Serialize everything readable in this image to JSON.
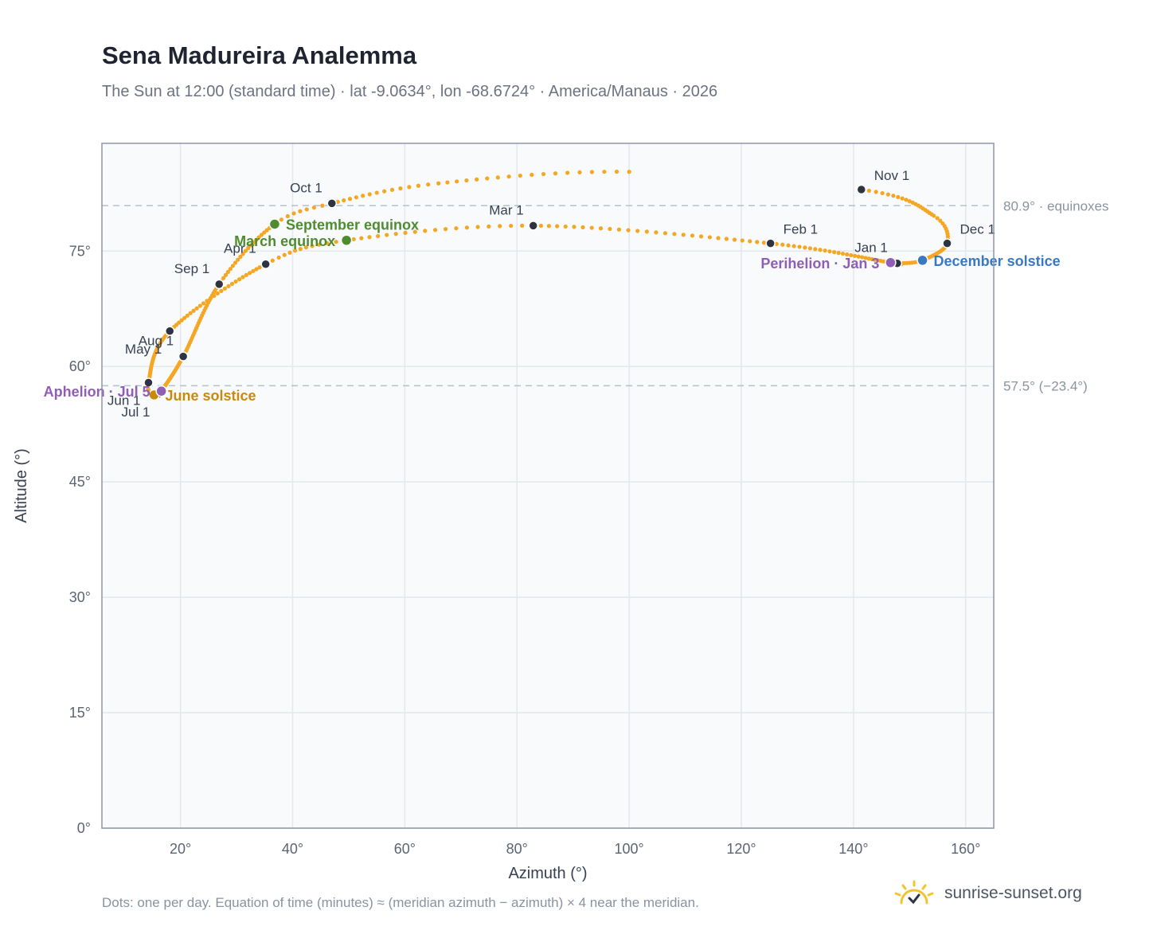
{
  "header": {
    "title": "Sena Madureira Analemma",
    "subtitle": "The Sun at 12:00 (standard time) · lat -9.0634°, lon -68.6724° · America/Manaus · 2026"
  },
  "footer": {
    "note": "Dots: one per day. Equation of time (minutes) ≈ (meridian azimuth − azimuth) × 4 near the meridian.",
    "brand": "sunrise-sunset.org"
  },
  "colors": {
    "curve": "#f5a623",
    "month_marker": "#2d3340",
    "equinox": "#4e8c2f",
    "june_solstice": "#c98a0c",
    "december_solstice": "#3a78c2",
    "apsis": "#8e5fb5",
    "grid": "#e3e8ee",
    "plot_bg": "#f8fafc",
    "frame": "#8c97a6",
    "ref_line": "#b8c0cc"
  },
  "chart_data": {
    "type": "scatter",
    "title": "Sena Madureira Analemma",
    "xlabel": "Azimuth (°)",
    "ylabel": "Altitude (°)",
    "xlim": [
      6,
      165
    ],
    "ylim": [
      0,
      89
    ],
    "xticks": [
      20,
      40,
      60,
      80,
      100,
      120,
      140,
      160
    ],
    "yticks": [
      0,
      15,
      30,
      45,
      60,
      75
    ],
    "tick_suffix": "°",
    "grid": true,
    "series": [
      {
        "name": "",
        "note": "one dot per day, path interpolated through monthly anchors",
        "anchors": [
          {
            "date": "Jan 1",
            "doy": 1,
            "az": 147.8,
            "alt": 73.4
          },
          {
            "date": "Jan 3",
            "doy": 3,
            "az": 146.6,
            "alt": 73.5
          },
          {
            "date": "Feb 1",
            "doy": 32,
            "az": 125.2,
            "alt": 76.0
          },
          {
            "date": "Mar 1",
            "doy": 60,
            "az": 82.9,
            "alt": 78.3
          },
          {
            "date": "Mar 20",
            "doy": 79,
            "az": 49.6,
            "alt": 76.4
          },
          {
            "date": "Apr 1",
            "doy": 91,
            "az": 35.2,
            "alt": 73.3
          },
          {
            "date": "May 1",
            "doy": 121,
            "az": 18.1,
            "alt": 64.6
          },
          {
            "date": "Jun 1",
            "doy": 152,
            "az": 14.3,
            "alt": 57.9
          },
          {
            "date": "Jun 21",
            "doy": 172,
            "az": 15.3,
            "alt": 56.3
          },
          {
            "date": "Jul 1",
            "doy": 182,
            "az": 16.0,
            "alt": 56.4
          },
          {
            "date": "Jul 5",
            "doy": 186,
            "az": 16.6,
            "alt": 56.8
          },
          {
            "date": "Aug 1",
            "doy": 213,
            "az": 20.5,
            "alt": 61.3
          },
          {
            "date": "Sep 1",
            "doy": 244,
            "az": 26.9,
            "alt": 70.7
          },
          {
            "date": "Sep 23",
            "doy": 266,
            "az": 36.8,
            "alt": 78.5
          },
          {
            "date": "Oct 1",
            "doy": 274,
            "az": 47.0,
            "alt": 81.2
          },
          {
            "date": "Oct 15",
            "doy": 288,
            "az": 66.0,
            "alt": 83.8
          },
          {
            "date": "Nov 1",
            "doy": 305,
            "az": 100.0,
            "alt": 85.3
          },
          {
            "date": "Nov 1 ",
            "doy": 305,
            "az": 141.4,
            "alt": 83.0
          },
          {
            "date": "Nov 20",
            "doy": 324,
            "az": 154.3,
            "alt": 79.6
          },
          {
            "date": "Dec 1",
            "doy": 335,
            "az": 156.7,
            "alt": 76.0
          },
          {
            "date": "Dec 21",
            "doy": 355,
            "az": 152.3,
            "alt": 73.8
          },
          {
            "date": "Dec 31",
            "doy": 365,
            "az": 148.2,
            "alt": 73.4
          }
        ]
      }
    ],
    "month_markers": [
      {
        "label": "Jan 1",
        "az": 147.8,
        "alt": 73.4,
        "pos": "above-left"
      },
      {
        "label": "Feb 1",
        "az": 125.2,
        "alt": 76.0,
        "pos": "above-right"
      },
      {
        "label": "Mar 1",
        "az": 82.9,
        "alt": 78.3,
        "pos": "above-left"
      },
      {
        "label": "Apr 1",
        "az": 35.2,
        "alt": 73.3,
        "pos": "above-left"
      },
      {
        "label": "May 1",
        "az": 18.1,
        "alt": 64.6,
        "pos": "below-left"
      },
      {
        "label": "Jun 1",
        "az": 14.3,
        "alt": 57.9,
        "pos": "below-left"
      },
      {
        "label": "Jul 1",
        "az": 16.0,
        "alt": 56.4,
        "pos": "below-left"
      },
      {
        "label": "Aug 1",
        "az": 20.5,
        "alt": 61.3,
        "pos": "above-left"
      },
      {
        "label": "Sep 1",
        "az": 26.9,
        "alt": 70.7,
        "pos": "above-left"
      },
      {
        "label": "Oct 1",
        "az": 47.0,
        "alt": 81.2,
        "pos": "above-left"
      },
      {
        "label": "Nov 1",
        "az": 141.4,
        "alt": 83.0,
        "pos": "above-right"
      },
      {
        "label": "Dec 1",
        "az": 156.7,
        "alt": 76.0,
        "pos": "above-right"
      }
    ],
    "events": [
      {
        "label": "March equinox",
        "az": 49.6,
        "alt": 76.4,
        "color_key": "equinox",
        "pos": "left"
      },
      {
        "label": "September equinox",
        "az": 36.8,
        "alt": 78.5,
        "color_key": "equinox",
        "pos": "right"
      },
      {
        "label": "June solstice",
        "az": 15.3,
        "alt": 56.3,
        "color_key": "june_solstice",
        "pos": "right"
      },
      {
        "label": "December solstice",
        "az": 152.3,
        "alt": 73.8,
        "color_key": "december_solstice",
        "pos": "right"
      },
      {
        "label": "Perihelion · Jan 3",
        "az": 146.6,
        "alt": 73.5,
        "color_key": "apsis",
        "pos": "left"
      },
      {
        "label": "Aphelion · Jul 5",
        "az": 16.6,
        "alt": 56.8,
        "color_key": "apsis",
        "pos": "left"
      }
    ],
    "reference_lines": [
      {
        "alt": 80.9,
        "label": "80.9° · equinoxes"
      },
      {
        "alt": 57.5,
        "label": "57.5° (−23.4°)"
      }
    ]
  }
}
